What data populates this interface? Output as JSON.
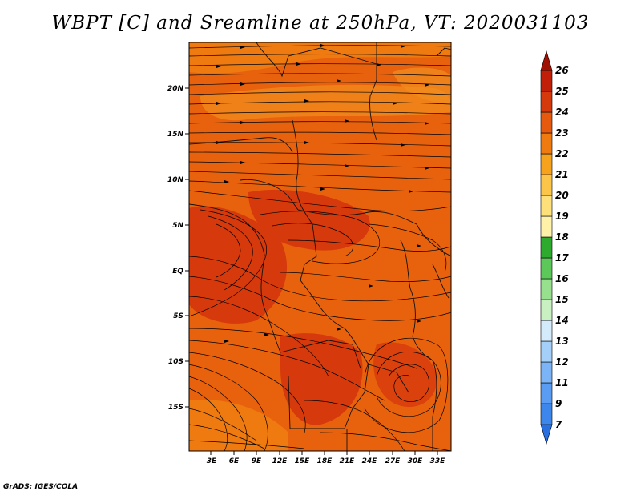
{
  "title": "WBPT [C] and Sreamline at 250hPa, VT: 2020031103",
  "credit": "GrADS: IGES/COLA",
  "map": {
    "lat_labels": [
      "20N",
      "15N",
      "10N",
      "5N",
      "EQ",
      "5S",
      "10S",
      "15S"
    ],
    "lon_labels": [
      "3E",
      "6E",
      "9E",
      "12E",
      "15E",
      "18E",
      "21E",
      "24E",
      "27E",
      "30E",
      "33E"
    ]
  },
  "colorbar": {
    "levels": [
      "7",
      "9",
      "11",
      "12",
      "13",
      "14",
      "15",
      "16",
      "17",
      "18",
      "19",
      "20",
      "21",
      "22",
      "23",
      "24",
      "25",
      "26"
    ],
    "colors": [
      "#2a6fe0",
      "#3d86ec",
      "#5a9cf3",
      "#7bb5f7",
      "#a4cff9",
      "#d4ebfb",
      "#c8f0c0",
      "#96e08e",
      "#5cc85a",
      "#2eaa2e",
      "#fff2a8",
      "#fde07a",
      "#fbc54a",
      "#f7a21c",
      "#ef7a10",
      "#e65a10",
      "#d63a0c",
      "#c21f08",
      "#a01204"
    ]
  }
}
